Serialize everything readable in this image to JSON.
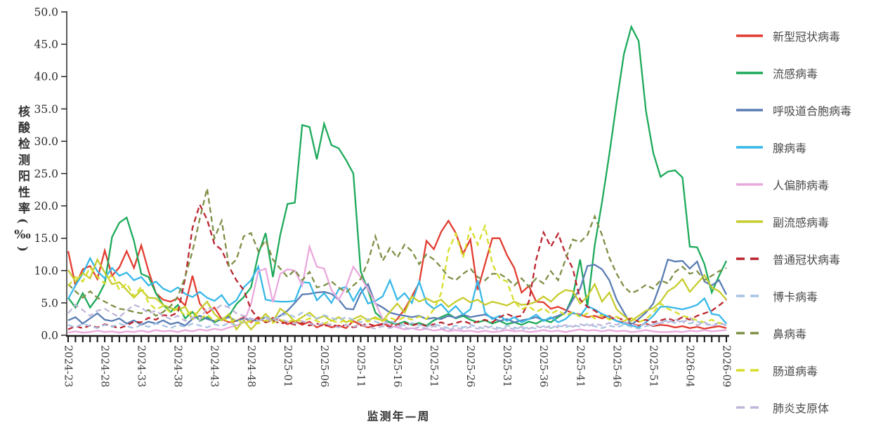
{
  "axis_titles": {
    "y": "核酸检测阳性率(‰)",
    "x": "监测年—周"
  },
  "chart_data": {
    "type": "line",
    "title": "",
    "xlabel": "监测年—周",
    "ylabel": "核酸检测阳性率(‰)",
    "ylim": [
      0,
      50
    ],
    "grid": false,
    "legend_position": "right",
    "y_tick_labels": [
      "0.0",
      "5.0",
      "10.0",
      "15.0",
      "20.0",
      "25.0",
      "30.0",
      "35.0",
      "40.0",
      "45.0",
      "50.0"
    ],
    "x_tick_every": 5,
    "x_categories": [
      "2024-23",
      "2024-24",
      "2024-25",
      "2024-26",
      "2024-27",
      "2024-28",
      "2024-29",
      "2024-30",
      "2024-31",
      "2024-32",
      "2024-33",
      "2024-34",
      "2024-35",
      "2024-36",
      "2024-37",
      "2024-38",
      "2024-39",
      "2024-40",
      "2024-41",
      "2024-42",
      "2024-43",
      "2024-44",
      "2024-45",
      "2024-46",
      "2024-47",
      "2024-48",
      "2024-49",
      "2024-50",
      "2024-51",
      "2024-52",
      "2025-01",
      "2025-02",
      "2025-03",
      "2025-04",
      "2025-05",
      "2025-06",
      "2025-07",
      "2025-08",
      "2025-09",
      "2025-10",
      "2025-11",
      "2025-12",
      "2025-13",
      "2025-14",
      "2025-15",
      "2025-16",
      "2025-17",
      "2025-18",
      "2025-19",
      "2025-20",
      "2025-21",
      "2025-22",
      "2025-23",
      "2025-24",
      "2025-25",
      "2025-26",
      "2025-27",
      "2025-28",
      "2025-29",
      "2025-30",
      "2025-31",
      "2025-32",
      "2025-33",
      "2025-34",
      "2025-35",
      "2025-36",
      "2025-37",
      "2025-38",
      "2025-39",
      "2025-40",
      "2025-41",
      "2025-42",
      "2025-43",
      "2025-44",
      "2025-45",
      "2025-46",
      "2025-47",
      "2025-48",
      "2025-49",
      "2025-50",
      "2025-51",
      "2025-52",
      "2026-01",
      "2026-02",
      "2026-03",
      "2026-04",
      "2026-05",
      "2026-06",
      "2026-07",
      "2026-08",
      "2026-09"
    ],
    "series": [
      {
        "name": "新型冠状病毒",
        "key": "novel-coronavirus",
        "color": "#e23c30",
        "dash": false,
        "values": [
          13.0,
          7.7,
          10.2,
          10.7,
          8.7,
          13.1,
          9.2,
          10.5,
          13.0,
          10.4,
          13.9,
          9.9,
          6.5,
          5.5,
          5.2,
          5.7,
          4.6,
          9.2,
          4.9,
          3.4,
          4.3,
          2.5,
          2.0,
          2.2,
          2.8,
          2.0,
          2.8,
          2.0,
          2.7,
          2.3,
          1.7,
          2.2,
          1.6,
          2.1,
          1.2,
          1.7,
          1.2,
          1.5,
          1.1,
          2.2,
          1.6,
          1.2,
          1.5,
          1.8,
          1.4,
          2.5,
          4.0,
          6.0,
          8.1,
          14.6,
          13.3,
          16.0,
          17.7,
          15.8,
          12.6,
          14.8,
          7.0,
          11.0,
          15.0,
          15.0,
          12.4,
          10.4,
          6.6,
          7.6,
          5.2,
          5.1,
          4.1,
          4.4,
          3.9,
          3.4,
          3.2,
          2.8,
          3.0,
          2.6,
          3.0,
          2.2,
          2.0,
          1.8,
          1.5,
          1.8,
          1.4,
          1.6,
          1.5,
          1.2,
          1.4,
          1.1,
          1.3,
          1.0,
          1.2,
          1.4,
          1.1
        ]
      },
      {
        "name": "流感病毒",
        "key": "influenza-virus",
        "color": "#1daa5a",
        "dash": false,
        "values": [
          5.8,
          4.3,
          6.5,
          4.3,
          5.8,
          8.0,
          15.2,
          17.4,
          18.2,
          14.6,
          9.5,
          9.0,
          6.5,
          4.7,
          3.6,
          4.7,
          2.6,
          3.6,
          2.2,
          2.8,
          2.0,
          2.5,
          3.0,
          4.8,
          5.9,
          7.4,
          12.5,
          15.8,
          9.0,
          15.5,
          20.3,
          20.5,
          32.5,
          32.2,
          27.2,
          32.7,
          29.4,
          28.9,
          27.1,
          25.0,
          9.9,
          7.0,
          3.5,
          2.5,
          2.0,
          1.7,
          2.1,
          1.6,
          1.9,
          1.5,
          2.3,
          2.8,
          3.3,
          2.6,
          3.0,
          2.4,
          2.0,
          2.3,
          1.8,
          2.2,
          1.7,
          2.0,
          1.6,
          2.1,
          1.8,
          2.4,
          2.0,
          2.8,
          3.5,
          6.0,
          11.7,
          4.5,
          13.9,
          20.6,
          28.0,
          36.0,
          43.5,
          47.7,
          45.5,
          34.7,
          28.2,
          24.5,
          25.3,
          25.5,
          24.4,
          13.7,
          13.6,
          11.0,
          6.6,
          9.2,
          11.5
        ]
      },
      {
        "name": "呼吸道合胞病毒",
        "key": "rsv",
        "color": "#5a7db3",
        "dash": false,
        "values": [
          2.3,
          2.8,
          1.8,
          2.6,
          3.4,
          2.4,
          2.2,
          2.6,
          1.8,
          2.3,
          1.6,
          2.1,
          1.8,
          2.3,
          1.7,
          2.0,
          1.5,
          2.5,
          3.0,
          2.5,
          2.2,
          2.5,
          2.8,
          2.2,
          2.6,
          2.4,
          2.2,
          2.8,
          2.4,
          3.0,
          3.8,
          5.0,
          6.3,
          6.4,
          6.6,
          6.7,
          6.4,
          5.5,
          4.1,
          4.0,
          6.5,
          7.9,
          4.9,
          4.3,
          3.5,
          3.2,
          3.0,
          2.8,
          3.0,
          2.5,
          2.7,
          2.5,
          3.0,
          2.7,
          3.2,
          2.8,
          3.0,
          3.2,
          2.7,
          2.2,
          2.5,
          2.0,
          2.3,
          2.5,
          2.8,
          2.3,
          2.6,
          3.0,
          3.5,
          5.5,
          7.2,
          10.7,
          10.9,
          10.2,
          8.5,
          5.5,
          3.5,
          1.6,
          2.5,
          3.5,
          4.9,
          8.0,
          11.7,
          11.4,
          11.5,
          10.3,
          11.4,
          8.3,
          7.7,
          8.5,
          6.3
        ]
      },
      {
        "name": "腺病毒",
        "key": "adenovirus",
        "color": "#37b8e8",
        "dash": false,
        "values": [
          5.6,
          7.7,
          9.5,
          11.9,
          9.9,
          8.8,
          10.4,
          9.2,
          9.7,
          8.5,
          9.0,
          7.7,
          8.3,
          7.2,
          6.7,
          7.4,
          6.4,
          5.9,
          6.7,
          5.8,
          5.3,
          6.2,
          4.6,
          5.4,
          7.4,
          8.5,
          10.6,
          5.5,
          5.3,
          5.2,
          5.2,
          5.3,
          8.2,
          8.1,
          5.4,
          6.5,
          5.0,
          7.1,
          7.5,
          5.3,
          7.3,
          4.9,
          5.3,
          6.0,
          8.5,
          5.5,
          6.5,
          5.0,
          8.3,
          5.0,
          4.1,
          4.8,
          3.5,
          4.5,
          3.2,
          4.0,
          8.5,
          3.5,
          2.5,
          3.0,
          2.2,
          2.8,
          2.0,
          2.5,
          3.2,
          2.2,
          2.8,
          2.0,
          2.5,
          3.5,
          3.0,
          4.5,
          4.0,
          3.3,
          2.8,
          2.2,
          1.8,
          1.5,
          1.2,
          2.0,
          3.0,
          4.4,
          4.4,
          4.2,
          4.0,
          4.3,
          4.7,
          5.7,
          3.3,
          3.1,
          1.8
        ]
      },
      {
        "name": "人偏肺病毒",
        "key": "hmpv",
        "color": "#e9a8dd",
        "dash": false,
        "values": [
          0.4,
          0.6,
          0.4,
          0.5,
          0.7,
          0.5,
          0.6,
          0.4,
          0.6,
          0.5,
          0.7,
          0.5,
          0.8,
          0.6,
          0.7,
          0.5,
          0.8,
          0.6,
          0.9,
          0.7,
          1.0,
          0.8,
          1.2,
          1.5,
          2.0,
          4.8,
          9.9,
          10.3,
          5.1,
          9.5,
          10.2,
          10.0,
          7.7,
          13.7,
          10.6,
          10.3,
          7.0,
          5.5,
          7.5,
          10.6,
          9.0,
          7.1,
          5.0,
          2.5,
          1.5,
          1.2,
          0.9,
          1.1,
          0.8,
          1.0,
          0.7,
          0.9,
          0.6,
          0.8,
          0.6,
          0.7,
          0.5,
          0.7,
          0.5,
          0.6,
          0.8,
          0.6,
          0.7,
          0.5,
          0.6,
          0.8,
          0.6,
          0.7,
          0.5,
          0.7,
          0.9,
          0.7,
          0.8,
          0.6,
          0.8,
          0.6,
          0.7,
          0.5,
          0.6,
          0.8,
          0.6,
          0.5,
          0.5,
          0.6,
          0.5,
          0.7,
          0.6,
          0.8,
          0.6,
          0.7,
          0.8
        ]
      },
      {
        "name": "副流感病毒",
        "key": "parainfluenza",
        "color": "#c6cc2d",
        "dash": false,
        "values": [
          10.1,
          8.3,
          9.6,
          8.8,
          11.7,
          9.7,
          7.9,
          8.2,
          7.0,
          5.8,
          7.0,
          5.8,
          5.7,
          4.7,
          4.2,
          3.9,
          4.4,
          2.5,
          4.0,
          5.2,
          3.3,
          2.3,
          3.3,
          0.9,
          2.3,
          0.9,
          2.1,
          3.3,
          2.1,
          4.1,
          3.3,
          2.1,
          2.8,
          3.5,
          2.5,
          3.0,
          2.2,
          2.8,
          2.0,
          2.5,
          3.0,
          2.3,
          2.8,
          2.2,
          3.6,
          4.9,
          3.5,
          6.0,
          5.2,
          5.7,
          5.1,
          5.5,
          4.4,
          5.2,
          5.8,
          5.1,
          5.5,
          4.7,
          5.2,
          4.9,
          4.6,
          5.2,
          4.7,
          4.8,
          5.2,
          6.0,
          5.2,
          6.3,
          7.0,
          6.8,
          4.9,
          6.0,
          7.9,
          5.2,
          6.6,
          4.0,
          3.0,
          2.2,
          3.0,
          3.8,
          4.2,
          5.2,
          6.8,
          7.5,
          8.7,
          6.7,
          8.0,
          9.3,
          7.4,
          6.8,
          5.5
        ]
      },
      {
        "name": "普通冠状病毒",
        "key": "common-coronavirus",
        "color": "#bb2430",
        "dash": true,
        "values": [
          0.9,
          1.4,
          1.1,
          1.5,
          1.2,
          1.7,
          1.4,
          1.1,
          1.5,
          2.1,
          2.0,
          2.7,
          2.4,
          3.1,
          3.0,
          3.5,
          8.8,
          16.6,
          20.2,
          17.9,
          14.1,
          13.2,
          10.6,
          8.5,
          7.0,
          4.0,
          2.5,
          2.0,
          2.3,
          1.8,
          2.0,
          1.6,
          1.9,
          1.5,
          1.8,
          1.4,
          1.7,
          1.3,
          1.6,
          1.2,
          1.5,
          1.8,
          1.4,
          1.7,
          1.3,
          1.6,
          1.9,
          1.5,
          1.8,
          1.4,
          1.7,
          2.0,
          1.6,
          1.9,
          2.2,
          1.8,
          2.1,
          2.4,
          2.0,
          2.8,
          3.3,
          2.8,
          3.0,
          5.2,
          11.7,
          15.9,
          13.7,
          15.7,
          12.6,
          10.3,
          5.5,
          4.4,
          3.8,
          3.0,
          2.5,
          2.8,
          2.3,
          2.6,
          2.1,
          2.4,
          2.0,
          2.3,
          2.6,
          2.2,
          2.8,
          2.4,
          3.0,
          3.4,
          3.8,
          4.6,
          5.5
        ]
      },
      {
        "name": "博卡病毒",
        "key": "bocavirus",
        "color": "#a7c3e2",
        "dash": true,
        "values": [
          1.6,
          1.2,
          1.8,
          1.4,
          1.1,
          1.6,
          1.3,
          1.8,
          1.4,
          1.1,
          1.6,
          1.3,
          1.8,
          1.5,
          1.1,
          1.6,
          1.3,
          1.8,
          1.5,
          1.2,
          1.7,
          1.4,
          1.9,
          1.5,
          2.1,
          2.5,
          2.2,
          2.8,
          2.4,
          3.0,
          3.3,
          2.8,
          3.5,
          3.0,
          2.6,
          3.1,
          2.7,
          2.3,
          2.8,
          2.4,
          2.0,
          2.5,
          2.1,
          1.7,
          2.2,
          1.8,
          1.5,
          1.9,
          1.6,
          1.3,
          1.7,
          1.4,
          1.1,
          1.5,
          1.2,
          1.6,
          1.3,
          1.0,
          1.4,
          1.1,
          1.5,
          1.2,
          0.9,
          1.3,
          1.0,
          1.4,
          1.1,
          1.5,
          1.2,
          1.6,
          1.3,
          1.7,
          1.4,
          1.1,
          1.5,
          1.2,
          1.6,
          1.3,
          1.0,
          1.4,
          1.7,
          2.0,
          2.3,
          1.9,
          2.2,
          1.8,
          2.1,
          1.7,
          1.6,
          1.9,
          1.5
        ]
      },
      {
        "name": "鼻病毒",
        "key": "rhinovirus",
        "color": "#7d8f45",
        "dash": true,
        "values": [
          7.9,
          6.8,
          5.8,
          6.8,
          5.8,
          5.2,
          4.6,
          4.1,
          3.9,
          3.6,
          3.4,
          3.9,
          3.0,
          3.6,
          4.5,
          6.0,
          9.0,
          13.0,
          18.0,
          22.7,
          15.0,
          17.7,
          10.6,
          11.7,
          15.3,
          15.8,
          13.0,
          14.7,
          11.7,
          10.3,
          9.0,
          10.1,
          8.5,
          9.8,
          7.4,
          7.7,
          8.3,
          7.4,
          6.6,
          7.7,
          8.7,
          11.4,
          15.3,
          11.5,
          13.5,
          12.0,
          14.0,
          13.0,
          11.0,
          12.5,
          11.7,
          10.5,
          9.0,
          8.5,
          9.5,
          10.3,
          9.0,
          8.5,
          9.5,
          9.5,
          8.8,
          7.7,
          8.8,
          7.5,
          8.8,
          8.0,
          9.9,
          8.5,
          11.7,
          14.8,
          14.4,
          15.5,
          18.4,
          15.5,
          12.0,
          9.5,
          7.5,
          6.5,
          7.0,
          7.8,
          7.2,
          8.5,
          8.0,
          9.8,
          10.6,
          9.5,
          9.9,
          8.5,
          9.2,
          9.9,
          10.4
        ]
      },
      {
        "name": "肠道病毒",
        "key": "enterovirus",
        "color": "#d6de2a",
        "dash": true,
        "values": [
          7.6,
          9.0,
          8.3,
          10.5,
          9.0,
          8.0,
          9.5,
          7.0,
          8.0,
          6.0,
          7.5,
          5.0,
          4.0,
          4.5,
          3.5,
          4.2,
          3.0,
          3.8,
          2.5,
          3.2,
          2.2,
          2.8,
          2.0,
          2.5,
          1.8,
          2.2,
          1.8,
          2.3,
          1.9,
          2.4,
          2.0,
          2.5,
          2.1,
          2.6,
          2.2,
          1.8,
          2.3,
          1.9,
          2.4,
          2.0,
          2.5,
          2.1,
          2.6,
          2.2,
          2.7,
          2.3,
          2.8,
          2.4,
          2.9,
          2.5,
          4.0,
          6.5,
          13.1,
          15.7,
          12.0,
          16.6,
          14.0,
          16.9,
          11.0,
          8.8,
          8.3,
          5.2,
          4.0,
          4.5,
          3.6,
          4.2,
          3.3,
          3.9,
          3.0,
          3.6,
          2.8,
          3.4,
          2.6,
          3.1,
          2.4,
          2.9,
          2.2,
          2.7,
          2.0,
          2.5,
          3.5,
          4.9,
          4.1,
          3.6,
          3.0,
          2.7,
          2.3,
          2.0,
          2.4,
          1.9,
          1.7
        ]
      },
      {
        "name": "肺炎支原体",
        "key": "mycoplasma-pneumoniae",
        "color": "#c0b6da",
        "dash": true,
        "values": [
          3.4,
          4.7,
          3.9,
          3.0,
          3.8,
          4.1,
          3.4,
          2.8,
          3.8,
          4.7,
          4.3,
          3.4,
          3.8,
          3.0,
          2.5,
          3.0,
          2.2,
          2.8,
          2.3,
          4.3,
          3.9,
          4.7,
          4.3,
          3.4,
          3.0,
          2.6,
          2.2,
          2.6,
          2.1,
          2.5,
          2.1,
          1.8,
          2.2,
          1.8,
          1.5,
          1.9,
          1.5,
          1.2,
          1.6,
          1.3,
          1.7,
          1.3,
          1.0,
          1.4,
          1.1,
          1.5,
          1.2,
          0.9,
          1.3,
          1.0,
          1.4,
          1.1,
          0.8,
          1.2,
          0.9,
          1.3,
          1.0,
          1.4,
          1.1,
          0.8,
          1.2,
          0.9,
          1.3,
          1.0,
          1.4,
          1.1,
          1.5,
          1.2,
          1.6,
          1.3,
          1.7,
          1.4,
          1.8,
          1.5,
          1.9,
          1.6,
          2.0,
          1.7,
          1.4,
          1.8,
          1.5,
          1.9,
          2.0,
          2.5,
          1.8,
          2.8,
          1.5,
          2.0,
          1.4,
          1.8,
          1.6
        ]
      }
    ]
  }
}
